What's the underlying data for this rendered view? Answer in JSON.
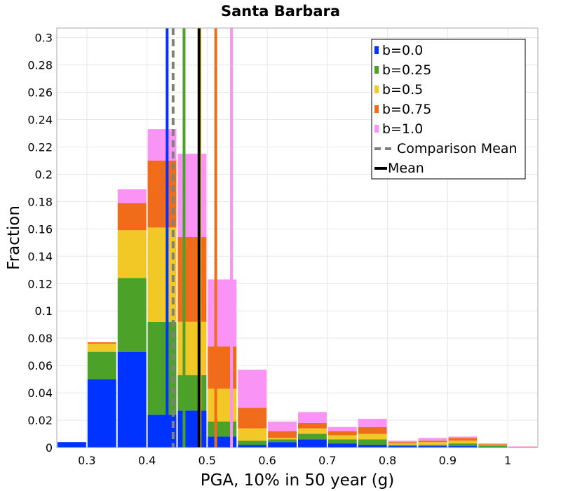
{
  "chart_data": {
    "type": "bar",
    "stacked": true,
    "title": "Santa Barbara",
    "xlabel": "PGA, 10% in 50 year (g)",
    "ylabel": "Fraction",
    "xlim": [
      0.25,
      1.05
    ],
    "ylim": [
      0,
      0.307
    ],
    "grid": true,
    "legend_position": "top-right",
    "bin_width": 0.05,
    "x_ticks": [
      "0.3",
      "0.4",
      "0.5",
      "0.6",
      "0.7",
      "0.8",
      "0.9",
      "1"
    ],
    "x_tick_values": [
      0.3,
      0.4,
      0.5,
      0.6,
      0.7,
      0.8,
      0.9,
      1.0
    ],
    "y_ticks": [
      "0",
      "0.02",
      "0.04",
      "0.06",
      "0.08",
      "0.1",
      "0.12",
      "0.14",
      "0.16",
      "0.18",
      "0.2",
      "0.22",
      "0.24",
      "0.26",
      "0.28",
      "0.3"
    ],
    "y_tick_values": [
      0,
      0.02,
      0.04,
      0.06,
      0.08,
      0.1,
      0.12,
      0.14,
      0.16,
      0.18,
      0.2,
      0.22,
      0.24,
      0.26,
      0.28,
      0.3
    ],
    "bin_starts": [
      0.25,
      0.3,
      0.35,
      0.4,
      0.45,
      0.5,
      0.55,
      0.6,
      0.65,
      0.7,
      0.75,
      0.8,
      0.85,
      0.9,
      0.95,
      1.0
    ],
    "series": [
      {
        "name": "b=0.0",
        "color": "#0033ff",
        "values": [
          0.004,
          0.05,
          0.07,
          0.024,
          0.027,
          0.008,
          0.002,
          0.004,
          0.006,
          0.003,
          0.002,
          0.001,
          0.001,
          0.001,
          0.0005,
          0.0003
        ]
      },
      {
        "name": "b=0.25",
        "color": "#4ca229",
        "values": [
          0,
          0.02,
          0.054,
          0.068,
          0.026,
          0.011,
          0.003,
          0.002,
          0.004,
          0.003,
          0.004,
          0.001,
          0.001,
          0.002,
          0.001,
          0.0002
        ]
      },
      {
        "name": "b=0.5",
        "color": "#f2c826",
        "values": [
          0,
          0.006,
          0.035,
          0.069,
          0.039,
          0.024,
          0.009,
          0.001,
          0.004,
          0.003,
          0.004,
          0.001,
          0.002,
          0.002,
          0.0005,
          0.0001
        ]
      },
      {
        "name": "b=0.75",
        "color": "#f06b1a",
        "values": [
          0,
          0.001,
          0.02,
          0.049,
          0.062,
          0.031,
          0.015,
          0.005,
          0.004,
          0.003,
          0.005,
          0.001,
          0.001,
          0.002,
          0.0005,
          0.0001
        ]
      },
      {
        "name": "b=1.0",
        "color": "#f994f4",
        "values": [
          0,
          0,
          0.01,
          0.023,
          0.061,
          0.049,
          0.028,
          0.007,
          0.008,
          0.003,
          0.006,
          0.001,
          0.002,
          0.001,
          0.0005,
          0.0001
        ]
      }
    ],
    "mean_lines": [
      {
        "series": "b=0.0",
        "x": 0.4335,
        "color": "#0033ff"
      },
      {
        "series": "b=0.25",
        "x": 0.4616,
        "color": "#4ca229"
      },
      {
        "series": "b=0.5",
        "x": 0.488,
        "color": "#f2c826"
      },
      {
        "series": "b=0.75",
        "x": 0.5143,
        "color": "#f06b1a"
      },
      {
        "series": "b=1.0",
        "x": 0.5405,
        "color": "#f994f4"
      }
    ],
    "comparison_mean": {
      "label": "Comparison Mean",
      "x": 0.4434,
      "color": "#808080",
      "style": "dashed"
    },
    "mean": {
      "label": "Mean",
      "x": 0.4865,
      "color": "#000000"
    }
  }
}
